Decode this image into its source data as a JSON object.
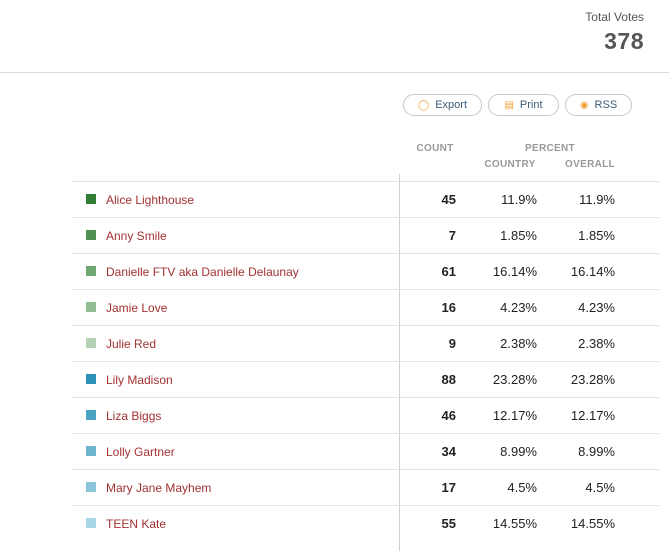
{
  "summary": {
    "total_votes_label": "Total Votes",
    "total_votes_value": "378"
  },
  "actions": {
    "export_label": "Export",
    "export_icon": "export-icon",
    "print_label": "Print",
    "print_icon": "printer-icon",
    "rss_label": "RSS",
    "rss_icon": "rss-icon"
  },
  "columns": {
    "count": "COUNT",
    "percent": "PERCENT",
    "country": "COUNTRY",
    "overall": "OVERALL"
  },
  "rows": [
    {
      "name": "Alice Lighthouse",
      "count": "45",
      "country": "11.9%",
      "overall": "11.9%",
      "color": "#2e7d32"
    },
    {
      "name": "Anny Smile",
      "count": "7",
      "country": "1.85%",
      "overall": "1.85%",
      "color": "#4f9153"
    },
    {
      "name": "Danielle FTV aka Danielle Delaunay",
      "count": "61",
      "country": "16.14%",
      "overall": "16.14%",
      "color": "#6fa873"
    },
    {
      "name": "Jamie Love",
      "count": "16",
      "country": "4.23%",
      "overall": "4.23%",
      "color": "#91bd93"
    },
    {
      "name": "Julie Red",
      "count": "9",
      "country": "2.38%",
      "overall": "2.38%",
      "color": "#b2d2b3"
    },
    {
      "name": "Lily Madison",
      "count": "88",
      "country": "23.28%",
      "overall": "23.28%",
      "color": "#2a93b5"
    },
    {
      "name": "Liza Biggs",
      "count": "46",
      "country": "12.17%",
      "overall": "12.17%",
      "color": "#4aa3c3"
    },
    {
      "name": "Lolly Gartner",
      "count": "34",
      "country": "8.99%",
      "overall": "8.99%",
      "color": "#6db4cf"
    },
    {
      "name": "Mary Jane Mayhem",
      "count": "17",
      "country": "4.5%",
      "overall": "4.5%",
      "color": "#8cc5da"
    },
    {
      "name": "TEEN Kate",
      "count": "55",
      "country": "14.55%",
      "overall": "14.55%",
      "color": "#a9d6e5"
    }
  ]
}
